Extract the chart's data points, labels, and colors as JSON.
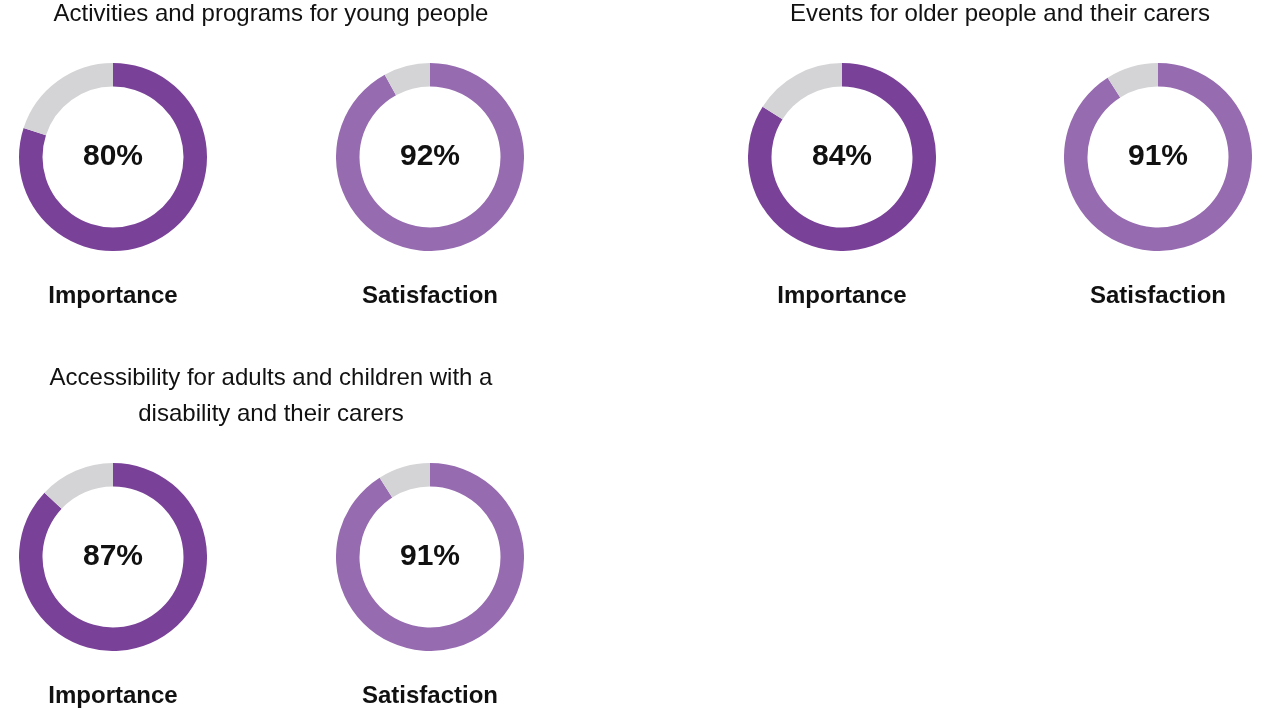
{
  "chart_data": [
    {
      "type": "donut",
      "title": "Activities and programs for young people",
      "xlabel": "Importance",
      "categories": [
        null,
        null
      ],
      "values": [
        80,
        20
      ],
      "colors": [
        "#7a4199",
        "#d4d4d6"
      ],
      "value_labels": [
        "80%",
        null
      ]
    },
    {
      "type": "donut",
      "xlabel": "Satisfaction",
      "categories": [
        null,
        null
      ],
      "values": [
        92,
        8
      ],
      "colors": [
        "#966bb0",
        "#d4d4d6"
      ],
      "value_labels": [
        "92%",
        null
      ]
    },
    {
      "type": "donut",
      "title": "Events for older people and their carers",
      "xlabel": "Importance",
      "categories": [
        null,
        null
      ],
      "values": [
        84,
        16
      ],
      "colors": [
        "#7a4199",
        "#d4d4d6"
      ],
      "value_labels": [
        "84%",
        null
      ]
    },
    {
      "type": "donut",
      "xlabel": "Satisfaction",
      "categories": [
        null,
        null
      ],
      "values": [
        91,
        9
      ],
      "colors": [
        "#966bb0",
        "#d4d4d6"
      ],
      "value_labels": [
        "91%",
        null
      ]
    },
    {
      "type": "donut",
      "title": "Accessibility for adults and children with a disability and their carers",
      "xlabel": "Importance",
      "categories": [
        null,
        null
      ],
      "values": [
        87,
        13
      ],
      "colors": [
        "#7a4199",
        "#d4d4d6"
      ],
      "value_labels": [
        "87%",
        null
      ]
    },
    {
      "type": "donut",
      "xlabel": "Satisfaction",
      "categories": [
        null,
        null
      ],
      "values": [
        91,
        9
      ],
      "colors": [
        "#966bb0",
        "#d4d4d6"
      ],
      "value_labels": [
        "91%",
        null
      ]
    }
  ]
}
